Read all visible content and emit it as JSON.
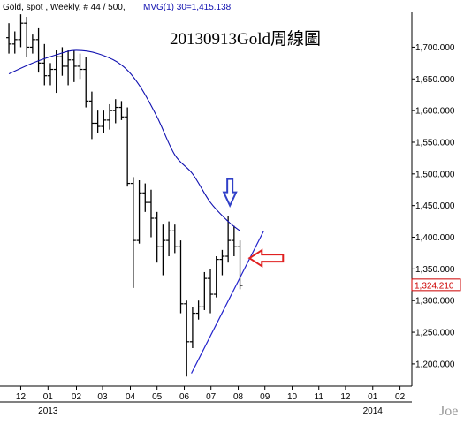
{
  "header": {
    "symbol_text": "Gold, spot , Weekly, # 44 / 500,",
    "indicator_text": "MVG(1) 30=1,415.138"
  },
  "watermark": "Joe",
  "colors": {
    "background": "#ffffff",
    "price_bars": "#000000",
    "moving_average": "#1010b0",
    "trendline": "#2222cc",
    "down_arrow": "#3040c8",
    "left_arrow": "#e02020",
    "last_price_box": "#cc0000",
    "indicator_text": "#1010b0"
  },
  "chart_data": {
    "type": "ohlc",
    "title": "20130913Gold周線圖",
    "xlabel": "",
    "ylabel": "",
    "ylim": [
      1165,
      1755
    ],
    "y_ticks": [
      "1,200.000",
      "1,250.000",
      "1,300.000",
      "1,350.000",
      "1,400.000",
      "1,450.000",
      "1,500.000",
      "1,550.000",
      "1,600.000",
      "1,650.000",
      "1,700.000"
    ],
    "y_tick_values": [
      1200,
      1250,
      1300,
      1350,
      1400,
      1450,
      1500,
      1550,
      1600,
      1650,
      1700
    ],
    "x_ticks": [
      {
        "label": "12",
        "week": 1.0
      },
      {
        "label": "01",
        "week": 5.6
      },
      {
        "label": "02",
        "week": 10.4
      },
      {
        "label": "03",
        "week": 14.8
      },
      {
        "label": "04",
        "week": 19.5
      },
      {
        "label": "05",
        "week": 24.0
      },
      {
        "label": "06",
        "week": 28.6
      },
      {
        "label": "07",
        "week": 33.1
      },
      {
        "label": "08",
        "week": 37.7
      },
      {
        "label": "09",
        "week": 42.2
      },
      {
        "label": "10",
        "week": 46.8
      },
      {
        "label": "11",
        "week": 51.3
      },
      {
        "label": "12",
        "week": 55.8
      },
      {
        "label": "01",
        "week": 60.4
      },
      {
        "label": "02",
        "week": 65.0
      }
    ],
    "year_labels": [
      {
        "label": "2013",
        "week": 5.6
      },
      {
        "label": "2014",
        "week": 60.4
      }
    ],
    "x_range": [
      -2.5,
      67
    ],
    "last_price_label": "1,324.210",
    "last_price": 1324.21,
    "bars": [
      {
        "week": -1,
        "open": 1715,
        "high": 1738,
        "low": 1690,
        "close": 1705
      },
      {
        "week": 0,
        "open": 1705,
        "high": 1725,
        "low": 1690,
        "close": 1712
      },
      {
        "week": 1,
        "open": 1712,
        "high": 1752,
        "low": 1700,
        "close": 1738
      },
      {
        "week": 2,
        "open": 1738,
        "high": 1748,
        "low": 1685,
        "close": 1700
      },
      {
        "week": 3,
        "open": 1700,
        "high": 1720,
        "low": 1690,
        "close": 1712
      },
      {
        "week": 4,
        "open": 1712,
        "high": 1730,
        "low": 1660,
        "close": 1675
      },
      {
        "week": 5,
        "open": 1675,
        "high": 1705,
        "low": 1640,
        "close": 1655
      },
      {
        "week": 6,
        "open": 1655,
        "high": 1675,
        "low": 1640,
        "close": 1665
      },
      {
        "week": 7,
        "open": 1665,
        "high": 1695,
        "low": 1628,
        "close": 1685
      },
      {
        "week": 8,
        "open": 1685,
        "high": 1700,
        "low": 1655,
        "close": 1670
      },
      {
        "week": 9,
        "open": 1670,
        "high": 1695,
        "low": 1640,
        "close": 1680
      },
      {
        "week": 10,
        "open": 1680,
        "high": 1695,
        "low": 1645,
        "close": 1670
      },
      {
        "week": 11,
        "open": 1670,
        "high": 1690,
        "low": 1650,
        "close": 1665
      },
      {
        "week": 12,
        "open": 1665,
        "high": 1685,
        "low": 1605,
        "close": 1615
      },
      {
        "week": 13,
        "open": 1615,
        "high": 1630,
        "low": 1555,
        "close": 1580
      },
      {
        "week": 14,
        "open": 1580,
        "high": 1600,
        "low": 1565,
        "close": 1575
      },
      {
        "week": 15,
        "open": 1575,
        "high": 1600,
        "low": 1565,
        "close": 1585
      },
      {
        "week": 16,
        "open": 1585,
        "high": 1610,
        "low": 1570,
        "close": 1600
      },
      {
        "week": 17,
        "open": 1600,
        "high": 1618,
        "low": 1580,
        "close": 1605
      },
      {
        "week": 18,
        "open": 1605,
        "high": 1615,
        "low": 1585,
        "close": 1590
      },
      {
        "week": 19,
        "open": 1590,
        "high": 1605,
        "low": 1480,
        "close": 1485
      },
      {
        "week": 20,
        "open": 1485,
        "high": 1495,
        "low": 1320,
        "close": 1395
      },
      {
        "week": 21,
        "open": 1395,
        "high": 1490,
        "low": 1390,
        "close": 1470
      },
      {
        "week": 22,
        "open": 1470,
        "high": 1485,
        "low": 1440,
        "close": 1455
      },
      {
        "week": 23,
        "open": 1455,
        "high": 1475,
        "low": 1400,
        "close": 1430
      },
      {
        "week": 24,
        "open": 1430,
        "high": 1440,
        "low": 1360,
        "close": 1385
      },
      {
        "week": 25,
        "open": 1385,
        "high": 1420,
        "low": 1340,
        "close": 1395
      },
      {
        "week": 26,
        "open": 1395,
        "high": 1425,
        "low": 1370,
        "close": 1410
      },
      {
        "week": 27,
        "open": 1410,
        "high": 1420,
        "low": 1375,
        "close": 1385
      },
      {
        "week": 28,
        "open": 1385,
        "high": 1395,
        "low": 1280,
        "close": 1295
      },
      {
        "week": 29,
        "open": 1295,
        "high": 1300,
        "low": 1180,
        "close": 1235
      },
      {
        "week": 30,
        "open": 1235,
        "high": 1290,
        "low": 1225,
        "close": 1280
      },
      {
        "week": 31,
        "open": 1280,
        "high": 1300,
        "low": 1270,
        "close": 1290
      },
      {
        "week": 32,
        "open": 1290,
        "high": 1345,
        "low": 1285,
        "close": 1335
      },
      {
        "week": 33,
        "open": 1335,
        "high": 1350,
        "low": 1280,
        "close": 1310
      },
      {
        "week": 34,
        "open": 1310,
        "high": 1370,
        "low": 1305,
        "close": 1365
      },
      {
        "week": 35,
        "open": 1365,
        "high": 1380,
        "low": 1340,
        "close": 1370
      },
      {
        "week": 36,
        "open": 1370,
        "high": 1433,
        "low": 1360,
        "close": 1395
      },
      {
        "week": 37,
        "open": 1395,
        "high": 1418,
        "low": 1370,
        "close": 1385
      },
      {
        "week": 38,
        "open": 1385,
        "high": 1395,
        "low": 1318,
        "close": 1324
      }
    ],
    "moving_average": {
      "name": "MVG(1) 30",
      "points": [
        [
          -1,
          1658
        ],
        [
          3,
          1675
        ],
        [
          7,
          1688
        ],
        [
          10,
          1695
        ],
        [
          14,
          1690
        ],
        [
          18,
          1672
        ],
        [
          21,
          1640
        ],
        [
          24,
          1590
        ],
        [
          27,
          1530
        ],
        [
          30,
          1500
        ],
        [
          33,
          1455
        ],
        [
          36,
          1425
        ],
        [
          38,
          1410
        ]
      ]
    },
    "trendline": {
      "points": [
        [
          29.8,
          1185
        ],
        [
          42,
          1410
        ]
      ]
    },
    "annotations": [
      {
        "type": "arrow-down",
        "week": 36.3,
        "value": 1450
      },
      {
        "type": "arrow-left",
        "week": 39.6,
        "value": 1367
      }
    ]
  }
}
